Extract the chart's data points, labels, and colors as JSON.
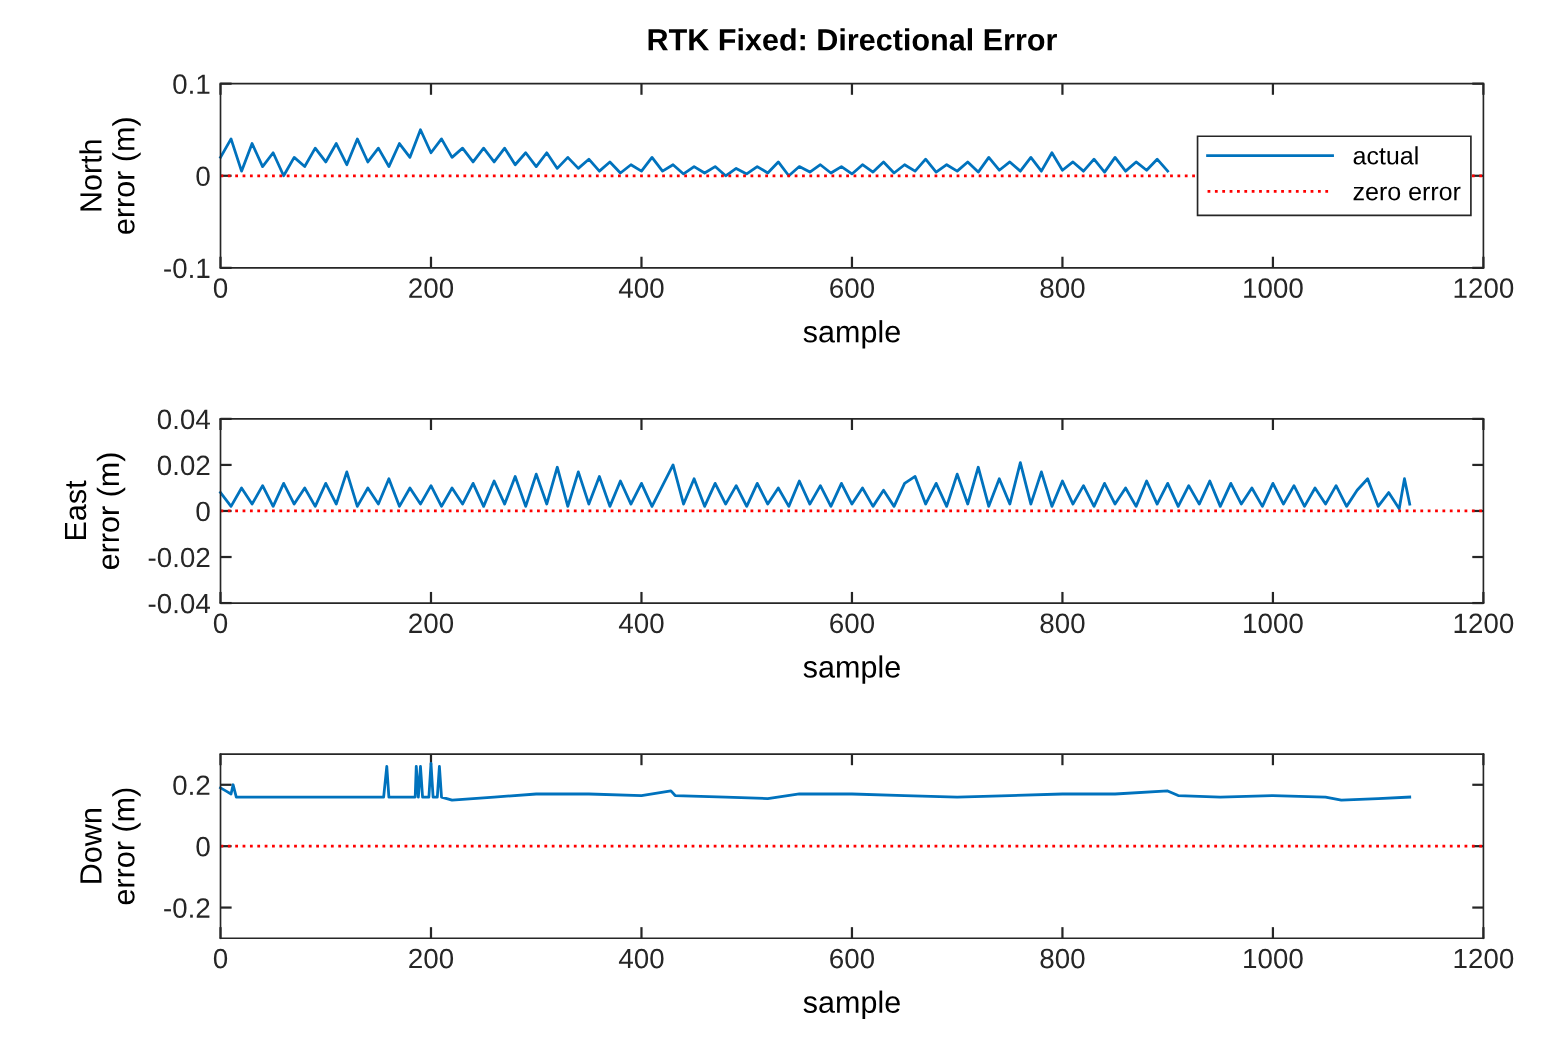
{
  "chart_data": [
    {
      "type": "line",
      "title": "RTK Fixed: Directional Error",
      "xlabel": "sample",
      "ylabel": "North\nerror (m)",
      "xlim": [
        0,
        1200
      ],
      "xticks": [
        0,
        200,
        400,
        600,
        800,
        1000,
        1200
      ],
      "ylim": [
        -0.1,
        0.1
      ],
      "yticks": [
        -0.1,
        0,
        0.1
      ],
      "grid": false,
      "legend": "right",
      "series": [
        {
          "name": "actual",
          "color": "#0072bd",
          "line_style": "solid",
          "x": [
            0,
            10,
            20,
            30,
            40,
            50,
            60,
            70,
            80,
            90,
            100,
            110,
            120,
            130,
            140,
            150,
            160,
            170,
            180,
            190,
            200,
            210,
            220,
            230,
            240,
            250,
            260,
            270,
            280,
            290,
            300,
            310,
            320,
            330,
            340,
            350,
            360,
            370,
            380,
            390,
            400,
            410,
            420,
            430,
            440,
            450,
            460,
            470,
            480,
            490,
            500,
            510,
            520,
            530,
            540,
            550,
            560,
            570,
            580,
            590,
            600,
            610,
            620,
            630,
            640,
            650,
            660,
            670,
            680,
            690,
            700,
            710,
            720,
            730,
            740,
            750,
            760,
            770,
            780,
            790,
            800,
            810,
            820,
            830,
            840,
            850,
            860,
            870,
            880,
            890,
            900
          ],
          "values": [
            0.02,
            0.04,
            0.005,
            0.035,
            0.01,
            0.025,
            0.0,
            0.02,
            0.01,
            0.03,
            0.015,
            0.035,
            0.012,
            0.04,
            0.015,
            0.03,
            0.01,
            0.035,
            0.02,
            0.05,
            0.025,
            0.04,
            0.02,
            0.03,
            0.015,
            0.03,
            0.015,
            0.03,
            0.012,
            0.025,
            0.01,
            0.025,
            0.008,
            0.02,
            0.008,
            0.018,
            0.005,
            0.015,
            0.003,
            0.012,
            0.005,
            0.02,
            0.005,
            0.012,
            0.002,
            0.01,
            0.003,
            0.01,
            0.0,
            0.008,
            0.002,
            0.01,
            0.003,
            0.015,
            0.0,
            0.01,
            0.004,
            0.012,
            0.003,
            0.01,
            0.002,
            0.012,
            0.004,
            0.015,
            0.003,
            0.012,
            0.005,
            0.018,
            0.004,
            0.012,
            0.005,
            0.015,
            0.004,
            0.02,
            0.006,
            0.015,
            0.005,
            0.02,
            0.005,
            0.025,
            0.006,
            0.015,
            0.005,
            0.018,
            0.004,
            0.02,
            0.005,
            0.015,
            0.006,
            0.018,
            0.005
          ]
        },
        {
          "name": "zero error",
          "color": "#ff0000",
          "line_style": "dotted",
          "x": [
            0,
            1200
          ],
          "values": [
            0,
            0
          ]
        }
      ]
    },
    {
      "type": "line",
      "xlabel": "sample",
      "ylabel": "East\nerror (m)",
      "xlim": [
        0,
        1200
      ],
      "xticks": [
        0,
        200,
        400,
        600,
        800,
        1000,
        1200
      ],
      "ylim": [
        -0.04,
        0.04
      ],
      "yticks": [
        -0.04,
        -0.02,
        0,
        0.02,
        0.04
      ],
      "grid": false,
      "series": [
        {
          "color": "#0072bd",
          "line_style": "solid",
          "x": [
            0,
            10,
            20,
            30,
            40,
            50,
            60,
            70,
            80,
            90,
            100,
            110,
            120,
            130,
            140,
            150,
            160,
            170,
            180,
            190,
            200,
            210,
            220,
            230,
            240,
            250,
            260,
            270,
            280,
            290,
            300,
            310,
            320,
            330,
            340,
            350,
            360,
            370,
            380,
            390,
            400,
            410,
            420,
            430,
            440,
            450,
            460,
            470,
            480,
            490,
            500,
            510,
            520,
            530,
            540,
            550,
            560,
            570,
            580,
            590,
            600,
            610,
            620,
            630,
            640,
            650,
            660,
            670,
            680,
            690,
            700,
            710,
            720,
            730,
            740,
            750,
            760,
            770,
            780,
            790,
            800,
            810,
            820,
            830,
            840,
            850,
            860,
            870,
            880,
            890,
            900,
            910,
            920,
            930,
            940,
            950,
            960,
            970,
            980,
            990,
            1000,
            1010,
            1020,
            1030,
            1040,
            1050,
            1060,
            1070,
            1080,
            1090,
            1100,
            1110,
            1120,
            1125,
            1130
          ],
          "values": [
            0.008,
            0.002,
            0.01,
            0.003,
            0.011,
            0.002,
            0.012,
            0.003,
            0.01,
            0.002,
            0.012,
            0.003,
            0.017,
            0.002,
            0.01,
            0.003,
            0.014,
            0.002,
            0.01,
            0.003,
            0.011,
            0.002,
            0.01,
            0.003,
            0.012,
            0.002,
            0.013,
            0.003,
            0.015,
            0.002,
            0.016,
            0.003,
            0.019,
            0.002,
            0.017,
            0.003,
            0.015,
            0.002,
            0.013,
            0.003,
            0.012,
            0.002,
            0.011,
            0.02,
            0.003,
            0.014,
            0.002,
            0.012,
            0.003,
            0.011,
            0.002,
            0.012,
            0.003,
            0.01,
            0.002,
            0.013,
            0.003,
            0.011,
            0.002,
            0.012,
            0.003,
            0.01,
            0.002,
            0.009,
            0.002,
            0.012,
            0.015,
            0.003,
            0.012,
            0.002,
            0.016,
            0.003,
            0.019,
            0.002,
            0.014,
            0.003,
            0.021,
            0.003,
            0.017,
            0.002,
            0.013,
            0.003,
            0.011,
            0.002,
            0.012,
            0.003,
            0.01,
            0.002,
            0.013,
            0.003,
            0.012,
            0.002,
            0.011,
            0.003,
            0.013,
            0.002,
            0.012,
            0.003,
            0.01,
            0.002,
            0.012,
            0.003,
            0.011,
            0.002,
            0.01,
            0.003,
            0.011,
            0.002,
            0.009,
            0.014,
            0.002,
            0.008,
            0.001,
            0.014,
            0.003
          ]
        },
        {
          "color": "#ff0000",
          "line_style": "dotted",
          "x": [
            0,
            1200
          ],
          "values": [
            0,
            0
          ]
        }
      ]
    },
    {
      "type": "line",
      "xlabel": "sample",
      "ylabel": "Down\nerror (m)",
      "xlim": [
        0,
        1200
      ],
      "xticks": [
        0,
        200,
        400,
        600,
        800,
        1000,
        1200
      ],
      "ylim": [
        -0.3,
        0.3
      ],
      "yticks": [
        -0.2,
        0,
        0.2
      ],
      "grid": false,
      "series": [
        {
          "color": "#0072bd",
          "line_style": "solid",
          "x": [
            0,
            5,
            10,
            12,
            15,
            40,
            80,
            120,
            155,
            158,
            160,
            185,
            186,
            188,
            190,
            192,
            198,
            200,
            202,
            206,
            208,
            210,
            220,
            260,
            300,
            350,
            400,
            428,
            432,
            480,
            520,
            550,
            600,
            650,
            700,
            750,
            800,
            850,
            900,
            910,
            950,
            1000,
            1050,
            1065,
            1100,
            1130
          ],
          "values": [
            0.19,
            0.18,
            0.17,
            0.2,
            0.16,
            0.16,
            0.16,
            0.16,
            0.16,
            0.26,
            0.16,
            0.16,
            0.26,
            0.16,
            0.26,
            0.16,
            0.16,
            0.27,
            0.16,
            0.16,
            0.26,
            0.16,
            0.15,
            0.16,
            0.17,
            0.17,
            0.165,
            0.18,
            0.165,
            0.16,
            0.155,
            0.17,
            0.17,
            0.165,
            0.16,
            0.165,
            0.17,
            0.17,
            0.18,
            0.165,
            0.16,
            0.165,
            0.16,
            0.15,
            0.155,
            0.16
          ]
        },
        {
          "color": "#ff0000",
          "line_style": "dotted",
          "x": [
            0,
            1200
          ],
          "values": [
            0,
            0
          ]
        }
      ]
    }
  ]
}
